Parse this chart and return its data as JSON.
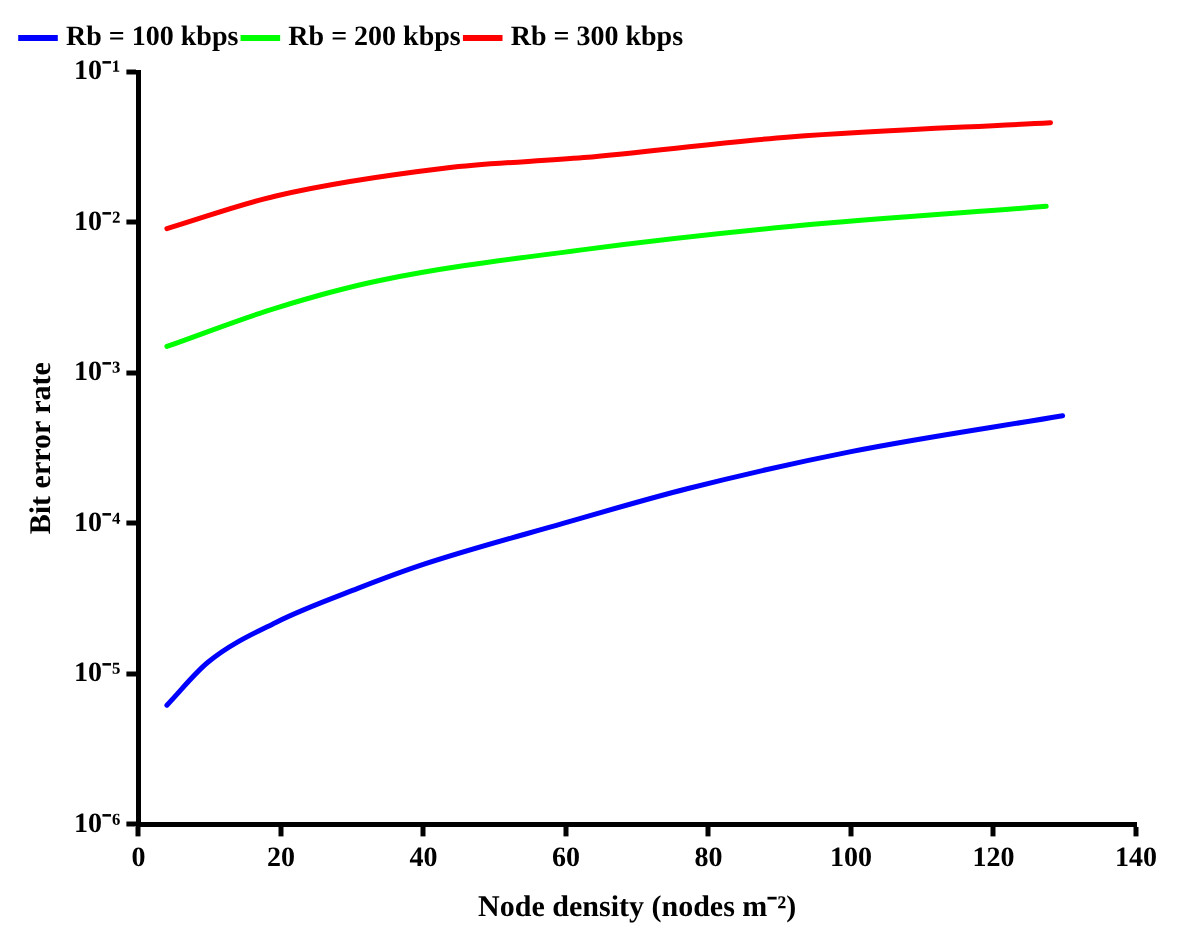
{
  "chart_data": {
    "type": "line",
    "xlabel": "Node density (nodes m⁻²)",
    "ylabel": "Bit error rate",
    "xlim": [
      0,
      140
    ],
    "xticks": [
      0,
      20,
      40,
      60,
      80,
      100,
      120,
      140
    ],
    "ylim": [
      1e-06,
      0.1
    ],
    "yticks": [
      {
        "value": 1e-06,
        "label": "10⁻⁶"
      },
      {
        "value": 1e-05,
        "label": "10⁻⁵"
      },
      {
        "value": 0.0001,
        "label": "10⁻⁴"
      },
      {
        "value": 0.001,
        "label": "10⁻³"
      },
      {
        "value": 0.01,
        "label": "10⁻²"
      },
      {
        "value": 0.1,
        "label": "10⁻¹"
      }
    ],
    "log": "y",
    "grid": false,
    "legend": "top left",
    "marker": "none",
    "line_style": "solid",
    "series": [
      {
        "name": "Rb = 100 kbps",
        "color": "#0000ff",
        "x": [
          4,
          9.8,
          19.3,
          30.8,
          40.3,
          59.6,
          77,
          100,
          129.7
        ],
        "values": [
          6.2e-06,
          1.2e-05,
          2.2e-05,
          3.7e-05,
          5.4e-05,
          0.0001,
          0.00017,
          0.0003,
          0.00052
        ]
      },
      {
        "name": "Rb = 200 kbps",
        "color": "#00ff00",
        "x": [
          4,
          19.3,
          33.7,
          62.5,
          91.4,
          127.4
        ],
        "values": [
          0.0015,
          0.0027,
          0.0041,
          0.0066,
          0.0094,
          0.0128
        ]
      },
      {
        "name": "Rb = 300 kbps",
        "color": "#ff0000",
        "x": [
          4,
          19.3,
          43.2,
          62.5,
          91.4,
          128
        ],
        "values": [
          0.0091,
          0.015,
          0.023,
          0.027,
          0.037,
          0.046
        ]
      }
    ]
  }
}
